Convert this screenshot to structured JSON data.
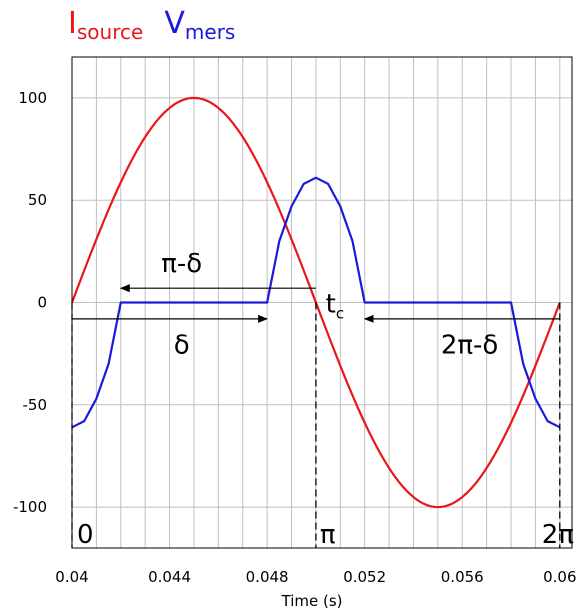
{
  "chart_data": {
    "type": "line",
    "xlabel": "Time (s)",
    "ylabel": "",
    "xlim": [
      0.04,
      0.0605
    ],
    "ylim": [
      -120,
      120
    ],
    "x_ticks": [
      "0.04",
      "0.044",
      "0.048",
      "0.052",
      "0.056",
      "0.06"
    ],
    "x_tick_values": [
      0.04,
      0.044,
      0.048,
      0.052,
      0.056,
      0.06
    ],
    "y_ticks": [
      "100",
      "50",
      "0",
      "-50",
      "-100"
    ],
    "y_tick_values": [
      100,
      50,
      0,
      -50,
      -100
    ],
    "grid": true,
    "legend_position": "top-left",
    "series": [
      {
        "name_main": "I",
        "name_sub": "source",
        "color": "#e8171b",
        "points": [
          [
            0.04,
            0
          ],
          [
            0.041,
            30.9
          ],
          [
            0.042,
            58.8
          ],
          [
            0.043,
            80.9
          ],
          [
            0.044,
            95.1
          ],
          [
            0.045,
            100
          ],
          [
            0.046,
            95.1
          ],
          [
            0.047,
            80.9
          ],
          [
            0.048,
            58.8
          ],
          [
            0.049,
            30.9
          ],
          [
            0.05,
            0
          ],
          [
            0.051,
            -30.9
          ],
          [
            0.052,
            -58.8
          ],
          [
            0.053,
            -80.9
          ],
          [
            0.054,
            -95.1
          ],
          [
            0.055,
            -100
          ],
          [
            0.056,
            -95.1
          ],
          [
            0.057,
            -80.9
          ],
          [
            0.058,
            -58.8
          ],
          [
            0.059,
            -30.9
          ],
          [
            0.06,
            0
          ]
        ]
      },
      {
        "name_main": "V",
        "name_sub": "mers",
        "color": "#1a1adb",
        "points": [
          [
            0.04,
            -61
          ],
          [
            0.0405,
            -58
          ],
          [
            0.041,
            -47
          ],
          [
            0.0415,
            -30
          ],
          [
            0.042,
            0
          ],
          [
            0.048,
            0
          ],
          [
            0.0485,
            30
          ],
          [
            0.049,
            47
          ],
          [
            0.0495,
            58
          ],
          [
            0.05,
            61
          ],
          [
            0.0505,
            58
          ],
          [
            0.051,
            47
          ],
          [
            0.0515,
            30
          ],
          [
            0.052,
            0
          ],
          [
            0.058,
            0
          ],
          [
            0.0585,
            -30
          ],
          [
            0.059,
            -47
          ],
          [
            0.0595,
            -58
          ],
          [
            0.06,
            -61
          ]
        ]
      }
    ],
    "annotations": {
      "pi_minus_delta": {
        "text": "π-δ",
        "arrow_from_x": 0.05,
        "arrow_to_x": 0.042,
        "y": 7
      },
      "delta": {
        "text": "δ",
        "arrow_from_x": 0.04,
        "arrow_to_x": 0.048,
        "y": -8
      },
      "tc": {
        "text_main": "t",
        "text_sub": "c",
        "x": 0.051,
        "y": -8
      },
      "two_pi_minus_delta": {
        "text": "2π-δ",
        "arrow_from_x": 0.06,
        "arrow_to_x": 0.052,
        "y": -8
      },
      "markers": [
        {
          "text": "0",
          "x": 0.04
        },
        {
          "text": "π",
          "x": 0.05
        },
        {
          "text": "2π",
          "x": 0.06
        }
      ]
    }
  }
}
